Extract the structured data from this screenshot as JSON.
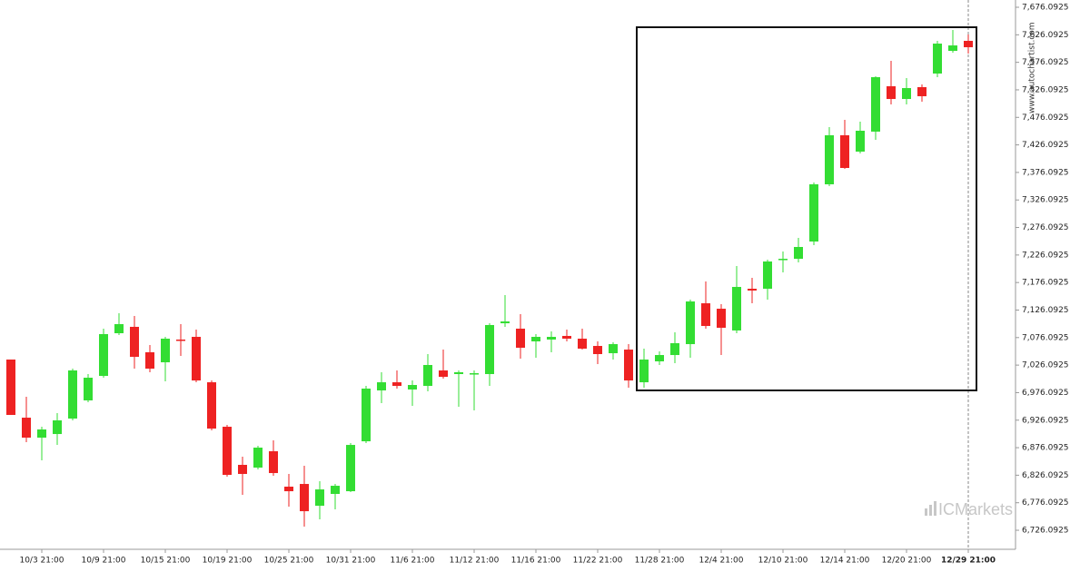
{
  "chart_data": {
    "type": "candlestick",
    "watermark": "www.autochartist.com",
    "brand": "ICMarkets",
    "up_color": "#33dd33",
    "down_color": "#ee2222",
    "categories": [
      null,
      null,
      "10/3 21:00",
      null,
      null,
      null,
      "10/9 21:00",
      null,
      null,
      null,
      "10/15 21:00",
      null,
      null,
      null,
      "10/19 21:00",
      null,
      null,
      null,
      "10/25 21:00",
      null,
      null,
      null,
      "10/31 21:00",
      null,
      null,
      null,
      "11/6 21:00",
      null,
      null,
      null,
      "11/12 21:00",
      null,
      null,
      null,
      "11/16 21:00",
      null,
      null,
      null,
      "11/22 21:00",
      null,
      null,
      null,
      "11/28 21:00",
      null,
      null,
      null,
      "12/4 21:00",
      null,
      null,
      null,
      "12/10 21:00",
      null,
      null,
      null,
      "12/14 21:00",
      null,
      null,
      null,
      "12/20 21:00",
      null,
      null,
      null,
      "12/29 21:00"
    ],
    "open": [
      7036.2,
      6930.6,
      6894.3,
      6900.9,
      6929.0,
      6962.0,
      7006.5,
      7084.0,
      7095.6,
      7049.4,
      7031.2,
      7072.5,
      7077.4,
      6994.9,
      6914.1,
      6844.9,
      6839.9,
      6869.6,
      6805.3,
      6810.2,
      6770.6,
      6792.1,
      6797.0,
      6887.7,
      6980.1,
      6994.9,
      6981.8,
      6988.3,
      7016.4,
      7009.8,
      7009.8,
      7009.8,
      7102.1,
      7092.3,
      7069.2,
      7072.5,
      7079.1,
      7074.1,
      7060.9,
      7047.7,
      7054.3,
      6994.9,
      7032.9,
      7044.4,
      7064.2,
      7138.4,
      7128.5,
      7089.0,
      7164.8,
      7164.8,
      7217.6,
      7219.2,
      7250.6,
      7354.5,
      7443.6,
      7413.9,
      7450.2,
      7532.6,
      7509.5,
      7531.0,
      7555.7,
      7596.9,
      7615.1
    ],
    "high": [
      7036.2,
      6968.6,
      6914.1,
      6938.9,
      7019.7,
      7009.8,
      7092.3,
      7120.3,
      7115.4,
      7062.6,
      7077.4,
      7100.5,
      7090.6,
      6998.2,
      6917.4,
      6859.7,
      6879.5,
      6889.4,
      6828.4,
      6843.2,
      6815.2,
      6810.2,
      6884.4,
      6988.3,
      7013.1,
      7016.4,
      6998.2,
      7046.1,
      7054.3,
      7016.4,
      7016.4,
      7102.1,
      7153.3,
      7118.6,
      7082.4,
      7087.3,
      7090.6,
      7092.3,
      7069.2,
      7067.5,
      7064.2,
      7056.0,
      7051.0,
      7085.7,
      7145.0,
      7178.0,
      7136.8,
      7206.1,
      7184.6,
      7217.6,
      7232.4,
      7257.2,
      7357.8,
      7458.4,
      7471.6,
      7468.3,
      7550.8,
      7578.8,
      7547.5,
      7535.9,
      7615.1,
      7634.9,
      7626.6
    ],
    "low": [
      6935.6,
      6886.1,
      6853.1,
      6881.1,
      6925.7,
      6958.7,
      7003.2,
      7080.7,
      7019.7,
      7013.1,
      6996.6,
      7042.8,
      6994.9,
      6907.5,
      6823.4,
      6790.4,
      6836.6,
      6825.1,
      6769.0,
      6732.7,
      6745.9,
      6764.0,
      6795.4,
      6884.4,
      6957.0,
      6983.4,
      6952.1,
      6978.5,
      7001.5,
      6950.4,
      6943.8,
      6988.3,
      7095.6,
      7037.8,
      7039.5,
      7049.4,
      7069.2,
      7054.3,
      7027.9,
      7036.2,
      6985.0,
      6985.0,
      7026.3,
      7029.6,
      7039.5,
      7092.3,
      7044.4,
      7084.0,
      7138.4,
      7145.0,
      7194.5,
      7212.7,
      7244.0,
      7351.2,
      7382.5,
      7410.6,
      7435.3,
      7499.6,
      7499.6,
      7504.6,
      7549.1,
      7593.6,
      7592.0
    ],
    "close": [
      6935.6,
      6894.3,
      6909.2,
      6925.7,
      7016.4,
      7003.2,
      7082.4,
      7100.5,
      7041.1,
      7019.7,
      7074.1,
      7070.8,
      6998.2,
      6910.8,
      6826.7,
      6828.4,
      6876.2,
      6830.0,
      6797.0,
      6760.7,
      6800.3,
      6806.9,
      6881.1,
      6983.4,
      6994.9,
      6988.3,
      6990.0,
      7026.3,
      7004.8,
      7013.1,
      7011.4,
      7098.9,
      7105.4,
      7057.6,
      7077.4,
      7077.4,
      7074.1,
      7056.0,
      7046.1,
      7064.2,
      6998.2,
      7036.2,
      7044.4,
      7065.9,
      7141.7,
      7097.2,
      7093.9,
      7168.1,
      7161.5,
      7214.3,
      7219.2,
      7240.7,
      7354.5,
      7443.6,
      7384.2,
      7451.8,
      7549.1,
      7509.5,
      7529.3,
      7514.5,
      7610.1,
      7606.8,
      7603.5
    ],
    "ylim": [
      6691.5,
      7689.3
    ],
    "yticks": [
      {
        "value": 6726.0925,
        "label": "6,726.0925"
      },
      {
        "value": 6776.0925,
        "label": "6,776.0925"
      },
      {
        "value": 6826.0925,
        "label": "6,826.0925"
      },
      {
        "value": 6876.0925,
        "label": "6,876.0925"
      },
      {
        "value": 6926.0925,
        "label": "6,926.0925"
      },
      {
        "value": 6976.0925,
        "label": "6,976.0925"
      },
      {
        "value": 7026.0925,
        "label": "7,026.0925"
      },
      {
        "value": 7076.0925,
        "label": "7,076.0925"
      },
      {
        "value": 7126.0925,
        "label": "7,126.0925"
      },
      {
        "value": 7176.0925,
        "label": "7,176.0925"
      },
      {
        "value": 7226.0925,
        "label": "7,226.0925"
      },
      {
        "value": 7276.0925,
        "label": "7,276.0925"
      },
      {
        "value": 7326.0925,
        "label": "7,326.0925"
      },
      {
        "value": 7376.0925,
        "label": "7,376.0925"
      },
      {
        "value": 7426.0925,
        "label": "7,426.0925"
      },
      {
        "value": 7476.0925,
        "label": "7,476.0925"
      },
      {
        "value": 7526.0925,
        "label": "7,526.0925"
      },
      {
        "value": 7576.0925,
        "label": "7,576.0925"
      },
      {
        "value": 7626.0925,
        "label": "7,626.0925"
      },
      {
        "value": 7676.0925,
        "label": "7,676.0925"
      }
    ]
  }
}
